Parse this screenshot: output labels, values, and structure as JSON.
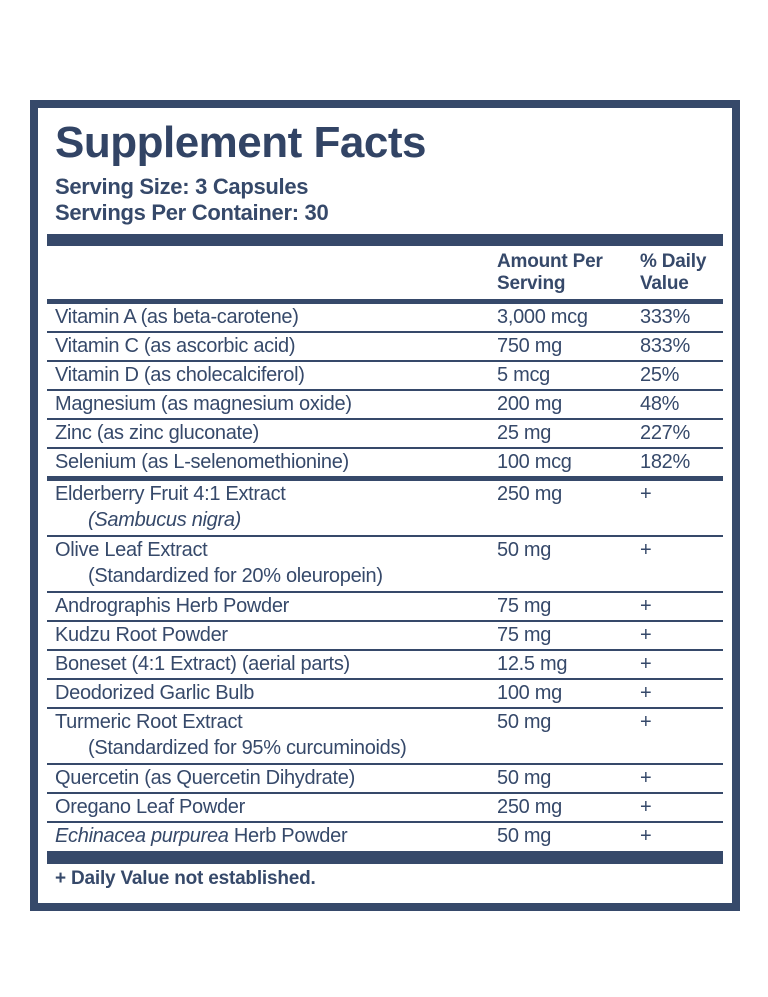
{
  "colors": {
    "navy": "#36496a",
    "background": "#ffffff"
  },
  "label": {
    "title": "Supplement Facts",
    "serving_size": "Serving Size: 3 Capsules",
    "servings_per_container": "Servings Per Container: 30",
    "footnote": "+ Daily Value not established."
  },
  "table": {
    "headers": {
      "amount": "Amount Per Serving",
      "daily_value": "% Daily Value"
    },
    "rows": [
      {
        "name_parts": [
          {
            "t": "Vitamin A (as beta-carotene)",
            "i": false
          }
        ],
        "amount": "3,000 mcg",
        "dv": "333%",
        "sep_after": "thin"
      },
      {
        "name_parts": [
          {
            "t": "Vitamin C (as ascorbic acid)",
            "i": false
          }
        ],
        "amount": "750 mg",
        "dv": "833%",
        "sep_after": "thin"
      },
      {
        "name_parts": [
          {
            "t": "Vitamin D (as cholecalciferol)",
            "i": false
          }
        ],
        "amount": "5 mcg",
        "dv": "25%",
        "sep_after": "thin"
      },
      {
        "name_parts": [
          {
            "t": "Magnesium (as magnesium oxide)",
            "i": false
          }
        ],
        "amount": "200 mg",
        "dv": "48%",
        "sep_after": "thin"
      },
      {
        "name_parts": [
          {
            "t": "Zinc (as zinc gluconate)",
            "i": false
          }
        ],
        "amount": "25 mg",
        "dv": "227%",
        "sep_after": "thin"
      },
      {
        "name_parts": [
          {
            "t": "Selenium (as L-selenomethionine)",
            "i": false
          }
        ],
        "amount": "100 mcg",
        "dv": "182%",
        "sep_after": "medium"
      },
      {
        "name_parts": [
          {
            "t": "Elderberry Fruit 4:1 Extract",
            "i": false
          }
        ],
        "amount": "250 mg",
        "dv": "+",
        "subline_parts": [
          {
            "t": "(Sambucus nigra)",
            "i": true
          }
        ],
        "sep_after": "thin"
      },
      {
        "name_parts": [
          {
            "t": "Olive Leaf Extract",
            "i": false
          }
        ],
        "amount": "50 mg",
        "dv": "+",
        "subline_parts": [
          {
            "t": "(Standardized for 20% oleuropein)",
            "i": false
          }
        ],
        "sep_after": "thin"
      },
      {
        "name_parts": [
          {
            "t": "Andrographis Herb Powder",
            "i": false
          }
        ],
        "amount": "75 mg",
        "dv": "+",
        "sep_after": "thin"
      },
      {
        "name_parts": [
          {
            "t": "Kudzu Root Powder",
            "i": false
          }
        ],
        "amount": "75 mg",
        "dv": "+",
        "sep_after": "thin"
      },
      {
        "name_parts": [
          {
            "t": "Boneset (4:1 Extract) (aerial parts)",
            "i": false
          }
        ],
        "amount": "12.5 mg",
        "dv": "+",
        "sep_after": "thin"
      },
      {
        "name_parts": [
          {
            "t": "Deodorized Garlic Bulb",
            "i": false
          }
        ],
        "amount": "100 mg",
        "dv": "+",
        "sep_after": "thin"
      },
      {
        "name_parts": [
          {
            "t": "Turmeric Root Extract",
            "i": false
          }
        ],
        "amount": "50 mg",
        "dv": "+",
        "subline_parts": [
          {
            "t": "(Standardized for 95% curcuminoids)",
            "i": false
          }
        ],
        "sep_after": "thin"
      },
      {
        "name_parts": [
          {
            "t": "Quercetin (as Quercetin Dihydrate)",
            "i": false
          }
        ],
        "amount": "50 mg",
        "dv": "+",
        "sep_after": "thin"
      },
      {
        "name_parts": [
          {
            "t": "Oregano Leaf Powder",
            "i": false
          }
        ],
        "amount": "250 mg",
        "dv": "+",
        "sep_after": "thin"
      },
      {
        "name_parts": [
          {
            "t": "Echinacea purpurea",
            "i": true
          },
          {
            "t": " Herb Powder",
            "i": false
          }
        ],
        "amount": "50 mg",
        "dv": "+",
        "sep_after": "none"
      }
    ]
  }
}
